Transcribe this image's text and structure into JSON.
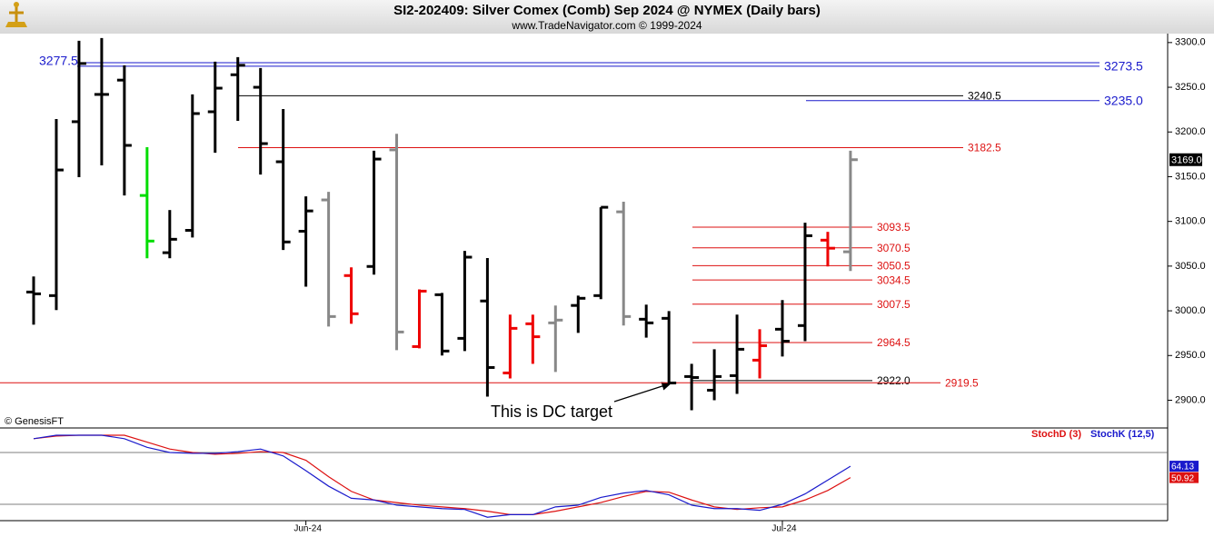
{
  "chart_data": {
    "type": "ohlc",
    "title": "SI2-202409:  Silver Comex (Comb) Sep 2024 @ NYMEX  (Daily bars)",
    "subtitle": "www.TradeNavigator.com © 1999-2024",
    "copyright": "© GenesisFT",
    "annotation": "This is DC target",
    "categories": [
      null,
      null,
      null,
      null,
      null,
      null,
      null,
      null,
      null,
      null,
      null,
      null,
      "Jun-24",
      null,
      null,
      null,
      null,
      null,
      null,
      null,
      null,
      null,
      null,
      null,
      null,
      null,
      null,
      null,
      null,
      null,
      null,
      null,
      null,
      "Jul-24",
      null,
      null,
      null
    ],
    "open": [
      3021,
      3017,
      3211.5,
      3242,
      3258,
      3129,
      3065,
      3090,
      3222.6,
      3264,
      3250,
      3166.7,
      3089,
      3124,
      3039.4,
      3049.6,
      3180,
      2960,
      3018,
      2969.2,
      3011,
      2930.5,
      2985.5,
      2986.5,
      3006,
      3017,
      3110.7,
      2990.6,
      2991.6,
      2926.5,
      2911.2,
      2927.5,
      2944.8,
      2979.4,
      2983.5,
      3079,
      3066
    ],
    "high": [
      3038.4,
      3214.5,
      3302,
      3305,
      3274.6,
      3183,
      3112.7,
      3242,
      3278.6,
      3283.7,
      3271.5,
      3225.7,
      3128,
      3133,
      3048.6,
      3179,
      3198,
      3024,
      3020,
      3067,
      3059,
      2995.7,
      2995.7,
      3005.9,
      3017,
      3115.8,
      3122,
      3006.9,
      2999.7,
      2940.7,
      2957,
      2995.7,
      2979.4,
      3012,
      3098.5,
      3088.3,
      3179
    ],
    "low": [
      2984.5,
      3000.8,
      3149.4,
      3162.6,
      3129,
      3058.8,
      3058.8,
      3082,
      3176.8,
      3212.5,
      3152.4,
      3068,
      3027,
      2982.4,
      2985.5,
      3040.5,
      2956,
      2958,
      2950,
      2955,
      2904,
      2924.4,
      2940.7,
      2931.6,
      2975.3,
      3013,
      2983.5,
      2970,
      2918.3,
      2888.8,
      2900,
      2907.1,
      2924.4,
      2948.9,
      2966,
      3049.6,
      3044.5
    ],
    "close": [
      3019,
      3157.5,
      3276.6,
      3242,
      3185,
      3078,
      3080,
      3220.6,
      3249,
      3274.6,
      3187,
      3077,
      3111.7,
      2993.6,
      2996.7,
      3169.7,
      2976.3,
      3022,
      2955,
      3060,
      2936.6,
      2980.4,
      2971,
      2989.6,
      3014,
      3115.8,
      2993.6,
      2986.5,
      2919.3,
      2925.4,
      2926.5,
      2957,
      2961,
      2966,
      3084,
      3070,
      3169
    ],
    "colors": [
      "#000000",
      "#000000",
      "#000000",
      "#000000",
      "#000000",
      "#00dd00",
      "#000000",
      "#000000",
      "#000000",
      "#000000",
      "#000000",
      "#000000",
      "#000000",
      "#888888",
      "#ee0000",
      "#000000",
      "#888888",
      "#ee0000",
      "#000000",
      "#000000",
      "#000000",
      "#ee0000",
      "#ee0000",
      "#888888",
      "#000000",
      "#000000",
      "#888888",
      "#000000",
      "#000000",
      "#000000",
      "#000000",
      "#000000",
      "#ee0000",
      "#000000",
      "#000000",
      "#ee0000",
      "#888888"
    ],
    "ylim": [
      2870,
      3310
    ],
    "yticks": [
      {
        "value": 2900,
        "label": "2900.0"
      },
      {
        "value": 2950,
        "label": "2950.0"
      },
      {
        "value": 3000,
        "label": "3000.0"
      },
      {
        "value": 3050,
        "label": "3050.0"
      },
      {
        "value": 3100,
        "label": "3100.0"
      },
      {
        "value": 3150,
        "label": "3150.0"
      },
      {
        "value": 3200,
        "label": "3200.0"
      },
      {
        "value": 3250,
        "label": "3250.0"
      },
      {
        "value": 3300,
        "label": "3300.0"
      }
    ],
    "last_price": {
      "value": 3169,
      "label": "3169.0"
    },
    "levels": [
      {
        "value": 3277.5,
        "color": "#1a1acc"
      },
      {
        "value": 3273.5,
        "color": "#1a1acc"
      },
      {
        "value": 3240.5,
        "color": "#000000"
      },
      {
        "value": 3235,
        "label": "3235.0",
        "color": "#1a1acc"
      },
      {
        "value": 3182.5,
        "color": "#dd1111"
      },
      {
        "value": 3093.5,
        "color": "#dd1111"
      },
      {
        "value": 3070.5,
        "color": "#dd1111"
      },
      {
        "value": 3050.5,
        "color": "#dd1111"
      },
      {
        "value": 3034.5,
        "color": "#dd1111"
      },
      {
        "value": 3007.5,
        "color": "#dd1111"
      },
      {
        "value": 2964.5,
        "color": "#dd1111"
      },
      {
        "value": 2922,
        "label": "2922.0",
        "color": "#000000"
      },
      {
        "value": 2919.5,
        "color": "#dd1111"
      }
    ],
    "stoch": {
      "ylim": [
        0,
        100
      ],
      "yticks": [
        20,
        80
      ],
      "series": [
        {
          "name": "StochD (3)",
          "color": "#dd1111",
          "values": [
            96,
            99,
            100,
            100,
            100,
            92,
            84,
            80,
            78,
            79,
            81,
            80,
            71,
            52,
            35,
            25,
            22,
            19,
            17,
            15,
            12,
            8,
            8,
            12,
            17,
            22,
            29,
            35,
            34,
            25,
            17,
            14,
            16,
            17,
            25,
            36,
            50.92
          ]
        },
        {
          "name": "StochK (12,5)",
          "color": "#1a1acc",
          "values": [
            96,
            100,
            100,
            100,
            96,
            86,
            80,
            79,
            79,
            81,
            84,
            76,
            59,
            41,
            27,
            25,
            19,
            17,
            15,
            14,
            5,
            8,
            8,
            17,
            19,
            28,
            33,
            36,
            31,
            19,
            15,
            15,
            13,
            20,
            32,
            48,
            64.13
          ]
        }
      ]
    }
  }
}
